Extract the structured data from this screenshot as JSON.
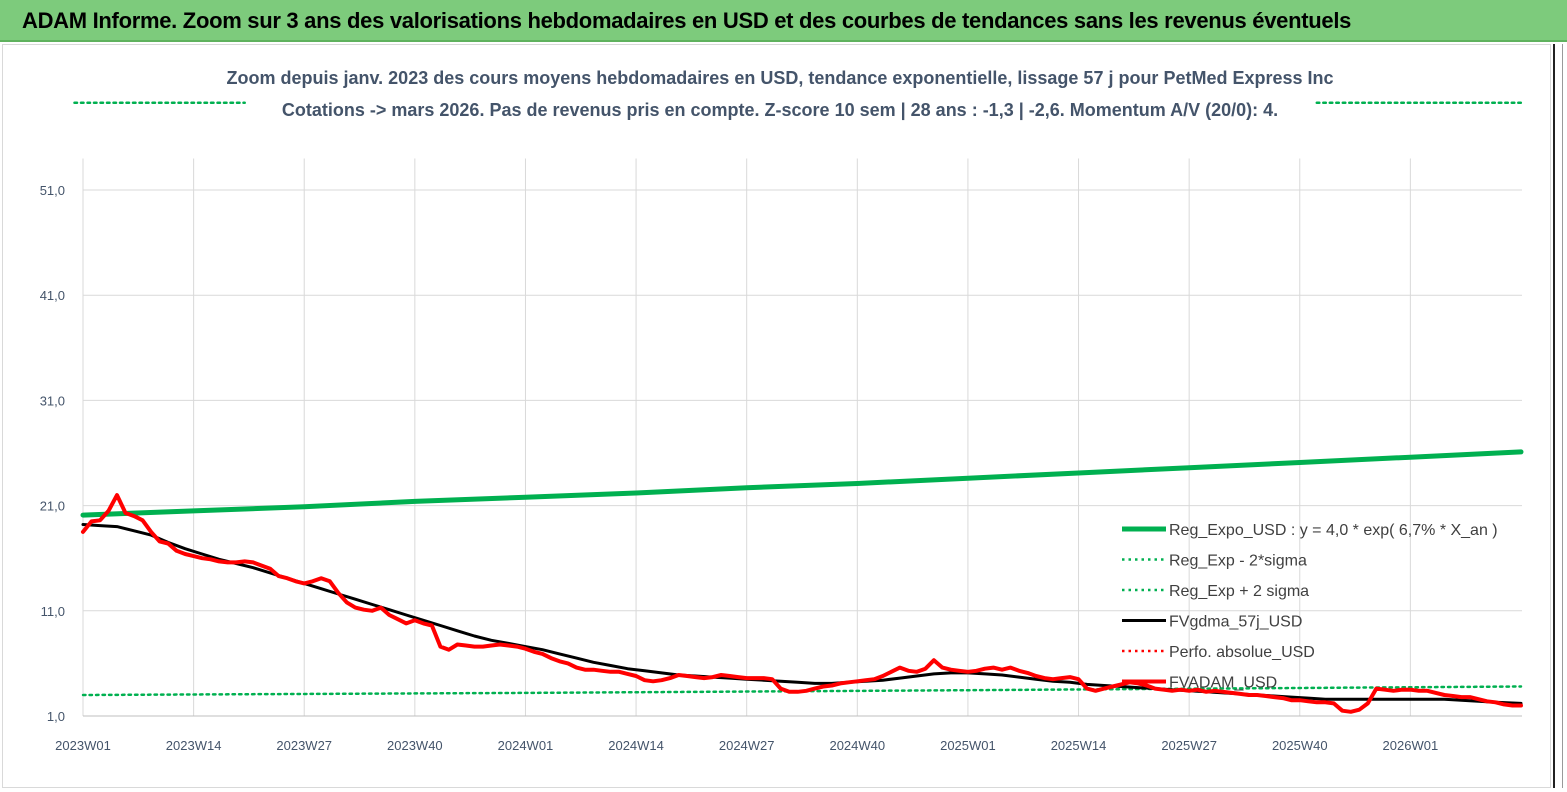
{
  "banner": {
    "title": "ADAM Informe. Zoom sur 3 ans des valorisations hebdomadaires en USD et des courbes de tendances sans les revenus éventuels"
  },
  "chart_data": {
    "type": "line",
    "title_line1": "Zoom depuis janv. 2023 des cours moyens hebdomadaires en USD, tendance exponentielle, lissage 57 j pour PetMed Express Inc",
    "title_line2": "Cotations -> mars 2026. Pas de revenus pris en compte. Z-score 10 sem  | 28 ans : -1,3  | -2,6. Momentum A/V (20/0): 4.",
    "ylim": [
      1,
      56
    ],
    "yticks": [
      1,
      11,
      21,
      31,
      41,
      51
    ],
    "ytick_labels": [
      "1,0",
      "11,0",
      "21,0",
      "31,0",
      "41,0",
      "51,0"
    ],
    "xticks": [
      {
        "week": 0,
        "label": "2023W01"
      },
      {
        "week": 13,
        "label": "2023W14"
      },
      {
        "week": 26,
        "label": "2023W27"
      },
      {
        "week": 39,
        "label": "2023W40"
      },
      {
        "week": 52,
        "label": "2024W01"
      },
      {
        "week": 65,
        "label": "2024W14"
      },
      {
        "week": 78,
        "label": "2024W27"
      },
      {
        "week": 91,
        "label": "2024W40"
      },
      {
        "week": 104,
        "label": "2025W01"
      },
      {
        "week": 117,
        "label": "2025W14"
      },
      {
        "week": 130,
        "label": "2025W27"
      },
      {
        "week": 143,
        "label": "2025W40"
      },
      {
        "week": 156,
        "label": "2026W01"
      }
    ],
    "x_max_week": 169,
    "grid": true,
    "legend_position": "right",
    "series": [
      {
        "name": "Reg_Expo_USD : y = 4,0 * exp( 6,7% *  X_an )",
        "color": "#00b050",
        "style": "solid-thick",
        "points": [
          [
            0,
            20.1
          ],
          [
            13,
            20.5
          ],
          [
            26,
            20.9
          ],
          [
            39,
            21.4
          ],
          [
            52,
            21.8
          ],
          [
            65,
            22.2
          ],
          [
            78,
            22.7
          ],
          [
            91,
            23.1
          ],
          [
            104,
            23.6
          ],
          [
            117,
            24.1
          ],
          [
            130,
            24.6
          ],
          [
            143,
            25.1
          ],
          [
            156,
            25.6
          ],
          [
            169,
            26.1
          ]
        ]
      },
      {
        "name": "Reg_Exp - 2*sigma",
        "color": "#00b050",
        "style": "dotted",
        "points": [
          [
            0,
            3.0
          ],
          [
            52,
            3.2
          ],
          [
            104,
            3.45
          ],
          [
            169,
            3.8
          ]
        ]
      },
      {
        "name": "Reg_Exp + 2 sigma",
        "color": "#00b050",
        "style": "dotted",
        "points": [
          [
            -1,
            59.3
          ],
          [
            19,
            59.3
          ]
        ],
        "points_right": [
          [
            145,
            59.3
          ],
          [
            169,
            59.3
          ]
        ]
      },
      {
        "name": "FVgdma_57j_USD",
        "color": "#000000",
        "style": "solid",
        "points": [
          [
            0,
            19.2
          ],
          [
            2,
            19.1
          ],
          [
            4,
            19.0
          ],
          [
            6,
            18.6
          ],
          [
            8,
            18.2
          ],
          [
            10,
            17.5
          ],
          [
            12,
            16.9
          ],
          [
            14,
            16.4
          ],
          [
            16,
            15.9
          ],
          [
            18,
            15.5
          ],
          [
            20,
            15.1
          ],
          [
            22,
            14.6
          ],
          [
            24,
            14.1
          ],
          [
            26,
            13.6
          ],
          [
            28,
            13.1
          ],
          [
            30,
            12.6
          ],
          [
            32,
            12.1
          ],
          [
            34,
            11.6
          ],
          [
            36,
            11.1
          ],
          [
            38,
            10.6
          ],
          [
            40,
            10.1
          ],
          [
            42,
            9.6
          ],
          [
            44,
            9.1
          ],
          [
            46,
            8.6
          ],
          [
            48,
            8.2
          ],
          [
            50,
            7.9
          ],
          [
            52,
            7.6
          ],
          [
            54,
            7.3
          ],
          [
            56,
            6.9
          ],
          [
            58,
            6.5
          ],
          [
            60,
            6.1
          ],
          [
            62,
            5.8
          ],
          [
            64,
            5.5
          ],
          [
            66,
            5.3
          ],
          [
            68,
            5.1
          ],
          [
            70,
            4.9
          ],
          [
            72,
            4.8
          ],
          [
            74,
            4.7
          ],
          [
            76,
            4.6
          ],
          [
            78,
            4.5
          ],
          [
            80,
            4.4
          ],
          [
            82,
            4.3
          ],
          [
            84,
            4.2
          ],
          [
            86,
            4.1
          ],
          [
            88,
            4.1
          ],
          [
            90,
            4.2
          ],
          [
            92,
            4.3
          ],
          [
            94,
            4.4
          ],
          [
            96,
            4.6
          ],
          [
            98,
            4.8
          ],
          [
            100,
            5.0
          ],
          [
            102,
            5.1
          ],
          [
            104,
            5.1
          ],
          [
            106,
            5.0
          ],
          [
            108,
            4.9
          ],
          [
            110,
            4.7
          ],
          [
            112,
            4.5
          ],
          [
            114,
            4.3
          ],
          [
            116,
            4.2
          ],
          [
            118,
            4.0
          ],
          [
            120,
            3.9
          ],
          [
            122,
            3.8
          ],
          [
            124,
            3.7
          ],
          [
            126,
            3.6
          ],
          [
            128,
            3.5
          ],
          [
            130,
            3.4
          ],
          [
            132,
            3.3
          ],
          [
            134,
            3.2
          ],
          [
            136,
            3.1
          ],
          [
            138,
            3.0
          ],
          [
            140,
            2.9
          ],
          [
            142,
            2.8
          ],
          [
            144,
            2.7
          ],
          [
            146,
            2.6
          ],
          [
            148,
            2.6
          ],
          [
            150,
            2.6
          ],
          [
            152,
            2.6
          ],
          [
            154,
            2.6
          ],
          [
            156,
            2.6
          ],
          [
            158,
            2.6
          ],
          [
            160,
            2.6
          ],
          [
            162,
            2.5
          ],
          [
            164,
            2.4
          ],
          [
            166,
            2.3
          ],
          [
            169,
            2.2
          ]
        ]
      },
      {
        "name": "Perfo. absolue_USD",
        "color": "#ff0000",
        "style": "dotted",
        "points": []
      },
      {
        "name": "FVADAM_USD",
        "color": "#ff0000",
        "style": "solid-thick",
        "points": [
          [
            0,
            18.5
          ],
          [
            1,
            19.5
          ],
          [
            2,
            19.6
          ],
          [
            3,
            20.5
          ],
          [
            4,
            22.0
          ],
          [
            5,
            20.3
          ],
          [
            6,
            20.0
          ],
          [
            7,
            19.6
          ],
          [
            8,
            18.5
          ],
          [
            9,
            17.6
          ],
          [
            10,
            17.4
          ],
          [
            11,
            16.7
          ],
          [
            12,
            16.4
          ],
          [
            13,
            16.2
          ],
          [
            14,
            16.0
          ],
          [
            15,
            15.9
          ],
          [
            16,
            15.7
          ],
          [
            17,
            15.6
          ],
          [
            18,
            15.6
          ],
          [
            19,
            15.7
          ],
          [
            20,
            15.6
          ],
          [
            21,
            15.3
          ],
          [
            22,
            15.0
          ],
          [
            23,
            14.3
          ],
          [
            24,
            14.1
          ],
          [
            25,
            13.8
          ],
          [
            26,
            13.6
          ],
          [
            27,
            13.8
          ],
          [
            28,
            14.1
          ],
          [
            29,
            13.8
          ],
          [
            30,
            12.7
          ],
          [
            31,
            11.8
          ],
          [
            32,
            11.3
          ],
          [
            33,
            11.1
          ],
          [
            34,
            11.0
          ],
          [
            35,
            11.3
          ],
          [
            36,
            10.6
          ],
          [
            37,
            10.2
          ],
          [
            38,
            9.8
          ],
          [
            39,
            10.1
          ],
          [
            40,
            9.8
          ],
          [
            41,
            9.6
          ],
          [
            42,
            7.6
          ],
          [
            43,
            7.3
          ],
          [
            44,
            7.8
          ],
          [
            45,
            7.7
          ],
          [
            46,
            7.6
          ],
          [
            47,
            7.6
          ],
          [
            48,
            7.7
          ],
          [
            49,
            7.8
          ],
          [
            50,
            7.7
          ],
          [
            51,
            7.6
          ],
          [
            52,
            7.4
          ],
          [
            53,
            7.1
          ],
          [
            54,
            6.9
          ],
          [
            55,
            6.5
          ],
          [
            56,
            6.2
          ],
          [
            57,
            6.0
          ],
          [
            58,
            5.6
          ],
          [
            59,
            5.4
          ],
          [
            60,
            5.4
          ],
          [
            61,
            5.3
          ],
          [
            62,
            5.2
          ],
          [
            63,
            5.2
          ],
          [
            64,
            5.0
          ],
          [
            65,
            4.8
          ],
          [
            66,
            4.4
          ],
          [
            67,
            4.3
          ],
          [
            68,
            4.4
          ],
          [
            69,
            4.6
          ],
          [
            70,
            4.9
          ],
          [
            71,
            4.8
          ],
          [
            72,
            4.7
          ],
          [
            73,
            4.6
          ],
          [
            74,
            4.7
          ],
          [
            75,
            4.9
          ],
          [
            76,
            4.8
          ],
          [
            77,
            4.7
          ],
          [
            78,
            4.6
          ],
          [
            79,
            4.6
          ],
          [
            80,
            4.6
          ],
          [
            81,
            4.5
          ],
          [
            82,
            3.6
          ],
          [
            83,
            3.3
          ],
          [
            84,
            3.3
          ],
          [
            85,
            3.4
          ],
          [
            86,
            3.6
          ],
          [
            87,
            3.8
          ],
          [
            88,
            3.9
          ],
          [
            89,
            4.1
          ],
          [
            90,
            4.2
          ],
          [
            91,
            4.3
          ],
          [
            92,
            4.4
          ],
          [
            93,
            4.5
          ],
          [
            94,
            4.8
          ],
          [
            95,
            5.2
          ],
          [
            96,
            5.6
          ],
          [
            97,
            5.3
          ],
          [
            98,
            5.2
          ],
          [
            99,
            5.5
          ],
          [
            100,
            6.3
          ],
          [
            101,
            5.6
          ],
          [
            102,
            5.4
          ],
          [
            103,
            5.3
          ],
          [
            104,
            5.2
          ],
          [
            105,
            5.3
          ],
          [
            106,
            5.5
          ],
          [
            107,
            5.6
          ],
          [
            108,
            5.4
          ],
          [
            109,
            5.6
          ],
          [
            110,
            5.3
          ],
          [
            111,
            5.1
          ],
          [
            112,
            4.8
          ],
          [
            113,
            4.6
          ],
          [
            114,
            4.5
          ],
          [
            115,
            4.6
          ],
          [
            116,
            4.7
          ],
          [
            117,
            4.5
          ],
          [
            118,
            3.6
          ],
          [
            119,
            3.4
          ],
          [
            120,
            3.6
          ],
          [
            121,
            3.8
          ],
          [
            122,
            4.0
          ],
          [
            123,
            4.2
          ],
          [
            124,
            4.1
          ],
          [
            125,
            3.9
          ],
          [
            126,
            3.6
          ],
          [
            127,
            3.5
          ],
          [
            128,
            3.4
          ],
          [
            129,
            3.5
          ],
          [
            130,
            3.4
          ],
          [
            131,
            3.5
          ],
          [
            132,
            3.3
          ],
          [
            133,
            3.4
          ],
          [
            134,
            3.3
          ],
          [
            135,
            3.2
          ],
          [
            136,
            3.1
          ],
          [
            137,
            3.0
          ],
          [
            138,
            3.0
          ],
          [
            139,
            2.9
          ],
          [
            140,
            2.8
          ],
          [
            141,
            2.7
          ],
          [
            142,
            2.5
          ],
          [
            143,
            2.5
          ],
          [
            144,
            2.4
          ],
          [
            145,
            2.3
          ],
          [
            146,
            2.3
          ],
          [
            147,
            2.2
          ],
          [
            148,
            1.5
          ],
          [
            149,
            1.4
          ],
          [
            150,
            1.6
          ],
          [
            151,
            2.2
          ],
          [
            152,
            3.6
          ],
          [
            153,
            3.5
          ],
          [
            154,
            3.4
          ],
          [
            155,
            3.5
          ],
          [
            156,
            3.5
          ],
          [
            157,
            3.4
          ],
          [
            158,
            3.4
          ],
          [
            159,
            3.2
          ],
          [
            160,
            3.0
          ],
          [
            161,
            2.9
          ],
          [
            162,
            2.8
          ],
          [
            163,
            2.8
          ],
          [
            164,
            2.6
          ],
          [
            165,
            2.4
          ],
          [
            166,
            2.3
          ],
          [
            167,
            2.1
          ],
          [
            168,
            2.0
          ],
          [
            169,
            2.0
          ]
        ]
      }
    ]
  }
}
